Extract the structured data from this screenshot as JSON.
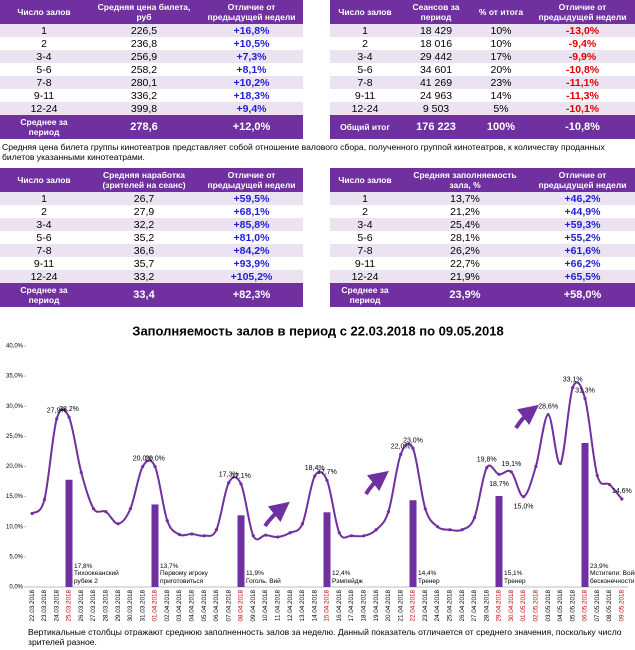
{
  "tables": [
    {
      "headers": [
        "Число залов",
        "Средняя цена билета, руб",
        "Отличие от предыдущей недели"
      ],
      "diff_color": "#1f1fd6",
      "rows": [
        [
          "1",
          "226,5",
          "+16,8%"
        ],
        [
          "2",
          "236,8",
          "+10,5%"
        ],
        [
          "3-4",
          "256,9",
          "+7,3%"
        ],
        [
          "5-6",
          "258,2",
          "+8,1%"
        ],
        [
          "7-8",
          "280,1",
          "+10,2%"
        ],
        [
          "9-11",
          "336,2",
          "+18,3%"
        ],
        [
          "12-24",
          "399,8",
          "+9,4%"
        ]
      ],
      "total": [
        "Среднее за период",
        "278,6",
        "+12,0%"
      ]
    },
    {
      "headers": [
        "Число залов",
        "Сеансов за период",
        "% от итога",
        "Отличие от предыдущей недели"
      ],
      "diff_color": "#e00000",
      "rows": [
        [
          "1",
          "18 429",
          "10%",
          "-13,0%"
        ],
        [
          "2",
          "18 016",
          "10%",
          "-9,4%"
        ],
        [
          "3-4",
          "29 442",
          "17%",
          "-9,9%"
        ],
        [
          "5-6",
          "34 601",
          "20%",
          "-10,8%"
        ],
        [
          "7-8",
          "41 269",
          "23%",
          "-11,1%"
        ],
        [
          "9-11",
          "24 963",
          "14%",
          "-11,3%"
        ],
        [
          "12-24",
          "9 503",
          "5%",
          "-10,1%"
        ]
      ],
      "total": [
        "Общий итог",
        "176 223",
        "100%",
        "-10,8%"
      ]
    },
    {
      "headers": [
        "Число залов",
        "Средняя наработка (зрителей на сеанс)",
        "Отличие от предыдущей недели"
      ],
      "diff_color": "#1f1fd6",
      "rows": [
        [
          "1",
          "26,7",
          "+59,5%"
        ],
        [
          "2",
          "27,9",
          "+68,1%"
        ],
        [
          "3-4",
          "32,2",
          "+85,8%"
        ],
        [
          "5-6",
          "35,2",
          "+81,0%"
        ],
        [
          "7-8",
          "36,6",
          "+84,2%"
        ],
        [
          "9-11",
          "35,7",
          "+93,9%"
        ],
        [
          "12-24",
          "33,2",
          "+105,2%"
        ]
      ],
      "total": [
        "Среднее за период",
        "33,4",
        "+82,3%"
      ]
    },
    {
      "headers": [
        "Число залов",
        "Средняя заполняемость зала, %",
        "Отличие от предыдущей недели"
      ],
      "diff_color": "#1f1fd6",
      "rows": [
        [
          "1",
          "13,7%",
          "+46,2%"
        ],
        [
          "2",
          "21,2%",
          "+44,9%"
        ],
        [
          "3-4",
          "25,4%",
          "+59,3%"
        ],
        [
          "5-6",
          "28,1%",
          "+55,2%"
        ],
        [
          "7-8",
          "26,2%",
          "+61,6%"
        ],
        [
          "9-11",
          "22,7%",
          "+66,2%"
        ],
        [
          "12-24",
          "21,9%",
          "+65,5%"
        ]
      ],
      "total": [
        "Среднее за период",
        "23,9%",
        "+58,0%"
      ]
    }
  ],
  "note": "Средняя цена билета группы кинотеатров представляет собой отношение валового сбора, полученного группой кинотеатров, к количеству проданных билетов указанными кинотеатрами.",
  "chart_data": {
    "type": "line",
    "title": "Заполняемость залов в период с 22.03.2018 по 09.05.2018",
    "categories": [
      "22.03.2018",
      "23.03.2018",
      "24.03.2018",
      "25.03.2018",
      "26.03.2018",
      "27.03.2018",
      "28.03.2018",
      "29.03.2018",
      "30.03.2018",
      "31.03.2018",
      "01.04.2018",
      "02.04.2018",
      "03.04.2018",
      "04.04.2018",
      "05.04.2018",
      "06.04.2018",
      "07.04.2018",
      "08.04.2018",
      "09.04.2018",
      "10.04.2018",
      "11.04.2018",
      "12.04.2018",
      "13.04.2018",
      "14.04.2018",
      "15.04.2018",
      "16.04.2018",
      "17.04.2018",
      "18.04.2018",
      "19.04.2018",
      "20.04.2018",
      "21.04.2018",
      "22.04.2018",
      "23.04.2018",
      "24.04.2018",
      "25.04.2018",
      "26.04.2018",
      "27.04.2018",
      "28.04.2018",
      "29.04.2018",
      "30.04.2018",
      "01.05.2018",
      "02.05.2018",
      "03.05.2018",
      "04.05.2018",
      "05.05.2018",
      "06.05.2018",
      "07.05.2018",
      "08.05.2018",
      "09.05.2018"
    ],
    "highlighted_categories": [
      3,
      10,
      17,
      24,
      31,
      38,
      39,
      40,
      41,
      45,
      48
    ],
    "highlight_color": "#c00000",
    "ylim": [
      0,
      40
    ],
    "yticks": [
      {
        "value": 0,
        "label": "0,0%"
      },
      {
        "value": 5,
        "label": "5,0%"
      },
      {
        "value": 10,
        "label": "10,0%"
      },
      {
        "value": 15,
        "label": "15,0%"
      },
      {
        "value": 20,
        "label": "20,0%"
      },
      {
        "value": 25,
        "label": "25,0%"
      },
      {
        "value": 30,
        "label": "30,0%"
      },
      {
        "value": 35,
        "label": "35,0%"
      },
      {
        "value": 40,
        "label": "40,0%"
      }
    ],
    "series": [
      {
        "type": "bar",
        "color": "#7030a0",
        "values": [
          null,
          null,
          null,
          17.8,
          null,
          null,
          null,
          null,
          null,
          null,
          13.7,
          null,
          null,
          null,
          null,
          null,
          null,
          11.9,
          null,
          null,
          null,
          null,
          null,
          null,
          12.4,
          null,
          null,
          null,
          null,
          null,
          null,
          14.4,
          null,
          null,
          null,
          null,
          null,
          null,
          15.1,
          null,
          null,
          null,
          null,
          null,
          null,
          23.9,
          null,
          null,
          null
        ],
        "value_labels": [
          null,
          null,
          null,
          "17,8%",
          null,
          null,
          null,
          null,
          null,
          null,
          "13,7%",
          null,
          null,
          null,
          null,
          null,
          null,
          "11,9%",
          null,
          null,
          null,
          null,
          null,
          null,
          "12,4%",
          null,
          null,
          null,
          null,
          null,
          null,
          "14,4%",
          null,
          null,
          null,
          null,
          null,
          null,
          "15,1%",
          null,
          null,
          null,
          null,
          null,
          null,
          "23,9%",
          null,
          null,
          null
        ],
        "notes": [
          null,
          null,
          null,
          "Тихоокеанский рубеж 2",
          null,
          null,
          null,
          null,
          null,
          null,
          "Первому игроку приготовиться",
          null,
          null,
          null,
          null,
          null,
          null,
          "Гоголь. Вий",
          null,
          null,
          null,
          null,
          null,
          null,
          "Рэмпейдж",
          null,
          null,
          null,
          null,
          null,
          null,
          "Тренер",
          null,
          null,
          null,
          null,
          null,
          null,
          "Тренер",
          null,
          null,
          null,
          null,
          null,
          null,
          "Мстители: Война бесконечности",
          null,
          null,
          null
        ]
      },
      {
        "type": "line",
        "color": "#7030a0",
        "values": [
          12.2,
          14.5,
          27.9,
          28.2,
          19,
          13,
          12.5,
          10.5,
          13,
          20.0,
          20.0,
          11,
          8.7,
          8.8,
          8.5,
          9.5,
          17.3,
          17.1,
          8.5,
          8.6,
          8.3,
          9.0,
          10.5,
          18.4,
          17.7,
          9.0,
          8.5,
          8.5,
          9.5,
          12.5,
          22.0,
          23.0,
          13,
          10,
          9.5,
          9.5,
          11.5,
          19.8,
          18.7,
          19.1,
          15.0,
          20,
          28.6,
          20.5,
          33.1,
          31.3,
          18.5,
          17,
          14.6
        ],
        "value_labels": [
          null,
          null,
          "27,9%",
          "28,2%",
          null,
          null,
          null,
          null,
          null,
          "20,0%",
          "20,0%",
          null,
          null,
          null,
          null,
          null,
          "17,3%",
          "17,1%",
          null,
          null,
          null,
          null,
          null,
          "18,4%",
          "17,7%",
          null,
          null,
          null,
          null,
          null,
          "22,0%",
          "23,0%",
          null,
          null,
          null,
          null,
          null,
          "19,8%",
          "18,7%",
          "19,1%",
          "15,0%",
          null,
          "28,6%",
          null,
          "33,1%",
          "31,3%",
          null,
          null,
          "14,6%"
        ]
      }
    ]
  },
  "footer": "Вертикальные столбцы отражают среднюю заполненность залов за неделю. Данный показатель отличается от среднего значения, поскольку число зрителей разное."
}
